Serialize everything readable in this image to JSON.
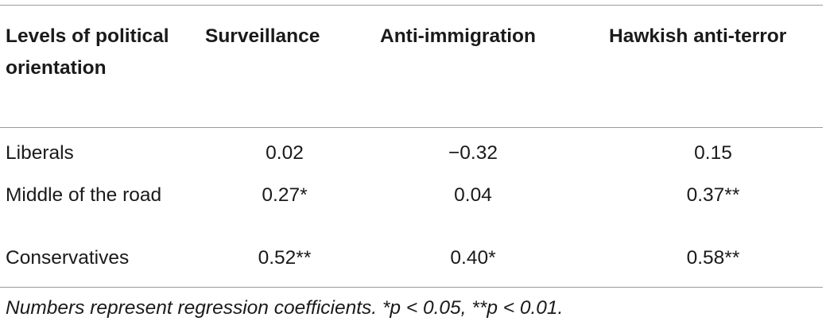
{
  "table": {
    "headers": [
      "Levels of political orientation",
      "Surveillance",
      "Anti-immigration",
      "Hawkish anti-terror"
    ],
    "rows": [
      {
        "label": "Liberals",
        "values": [
          "0.02",
          "−0.32",
          "0.15"
        ]
      },
      {
        "label": "Middle of the road",
        "values": [
          "0.27*",
          "0.04",
          "0.37**"
        ]
      },
      {
        "label": "Conservatives",
        "values": [
          "0.52**",
          "0.40*",
          "0.58**"
        ]
      }
    ]
  },
  "footnote": "Numbers represent regression coefficients. *p < 0.05, **p < 0.01."
}
